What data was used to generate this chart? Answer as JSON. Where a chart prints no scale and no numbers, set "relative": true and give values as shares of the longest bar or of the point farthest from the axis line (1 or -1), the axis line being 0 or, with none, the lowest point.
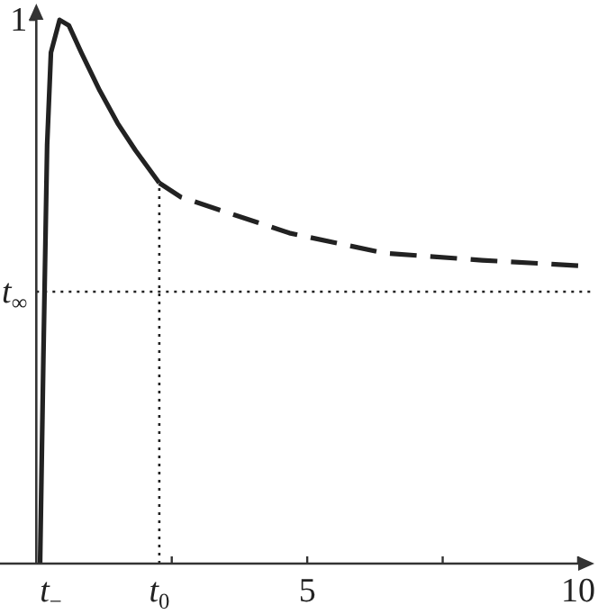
{
  "chart_data": {
    "type": "line",
    "relative": true,
    "series": [
      {
        "color": "#222222",
        "line_style": "solid",
        "x": [
          0.07,
          0.13,
          0.2,
          0.27,
          0.43,
          0.6,
          0.83,
          1.17,
          1.5,
          1.83,
          2.27
        ],
        "values": [
          0,
          0.375,
          0.77,
          0.94,
          1.0,
          0.99,
          0.94,
          0.87,
          0.81,
          0.76,
          0.7
        ]
      },
      {
        "color": "#222222",
        "line_style": "dashed",
        "x": [
          2.27,
          2.67,
          4.67,
          6.43,
          8.23,
          10
        ],
        "values": [
          0.7,
          0.674,
          0.608,
          0.571,
          0.558,
          0.548
        ]
      }
    ],
    "ref_lines": [
      {
        "axis": "y",
        "value": 0.5,
        "label": "t$_{∞}$",
        "line_style": "dotted",
        "color": "#222222"
      },
      {
        "axis": "x",
        "value": 2.27,
        "label": "t$_{0}$",
        "line_style": "dotted",
        "color": "#222222"
      }
    ],
    "annotations": [
      "t$_{−}$",
      "1"
    ],
    "xlim": [
      -0.67,
      10.3
    ],
    "xticks": [
      {
        "value": 2.5,
        "label": null
      },
      5,
      {
        "value": 7.5,
        "label": null
      },
      10
    ],
    "grid": false
  }
}
